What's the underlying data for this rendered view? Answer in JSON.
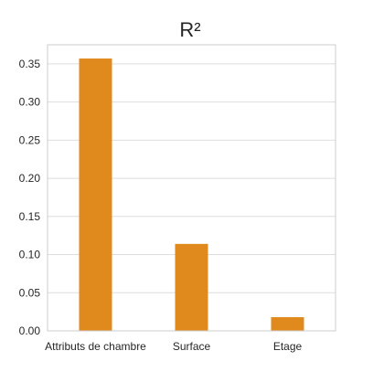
{
  "chart_data": {
    "type": "bar",
    "title": "R²",
    "xlabel": "",
    "ylabel": "",
    "categories": [
      "Attributs de chambre",
      "Surface",
      "Etage"
    ],
    "values": [
      0.357,
      0.114,
      0.018
    ],
    "ylim": [
      0,
      0.375
    ],
    "yticks": [
      0.0,
      0.05,
      0.1,
      0.15,
      0.2,
      0.25,
      0.3,
      0.35
    ],
    "ytick_labels": [
      "0.00",
      "0.05",
      "0.10",
      "0.15",
      "0.20",
      "0.25",
      "0.30",
      "0.35"
    ],
    "grid": "horizontal",
    "bar_color": "#e08a1e",
    "grid_color": "#dddddd",
    "axis_color": "#cccccc"
  }
}
